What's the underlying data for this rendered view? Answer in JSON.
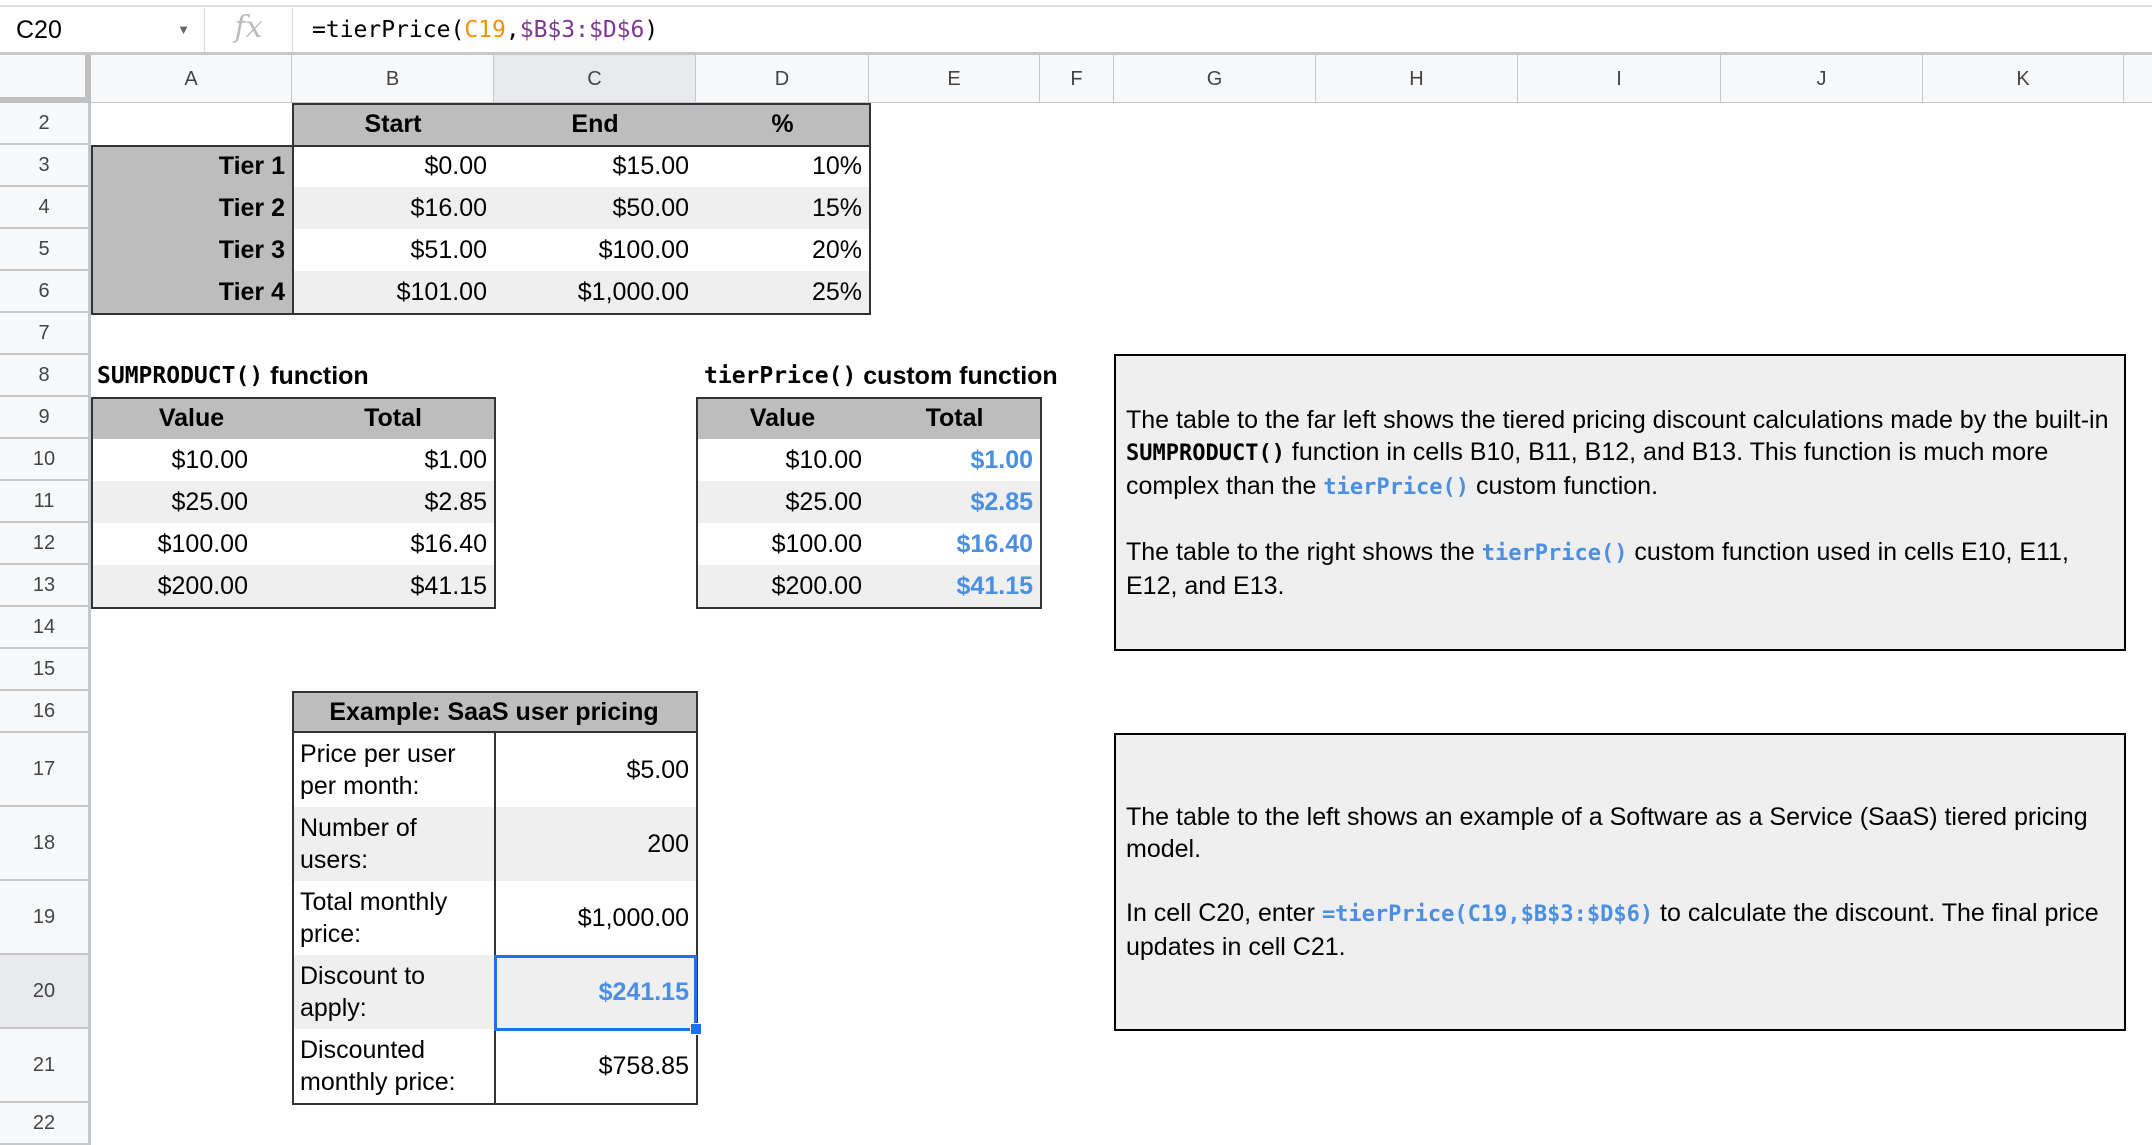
{
  "formula_bar": {
    "name_box": "C20",
    "fx_label": "fx",
    "formula": {
      "prefix": "=tierPrice(",
      "ref1": "C19",
      "sep": ",",
      "ref2": "$B$3:$D$6",
      "suffix": ")"
    },
    "ref_colors": {
      "ref1": "#f09300",
      "ref2": "#7e3794"
    }
  },
  "columns": [
    "A",
    "B",
    "C",
    "D",
    "E",
    "F",
    "G",
    "H",
    "I",
    "J",
    "K"
  ],
  "selected_column": "C",
  "rows": [
    "2",
    "3",
    "4",
    "5",
    "6",
    "7",
    "8",
    "9",
    "10",
    "11",
    "12",
    "13",
    "14",
    "15",
    "16",
    "17",
    "18",
    "19",
    "20",
    "21",
    "22"
  ],
  "selected_row": "20",
  "tier_table": {
    "headers": [
      "Start",
      "End",
      "%"
    ],
    "rows": [
      {
        "label": "Tier 1",
        "start": "$0.00",
        "end": "$15.00",
        "pct": "10%"
      },
      {
        "label": "Tier 2",
        "start": "$16.00",
        "end": "$50.00",
        "pct": "15%"
      },
      {
        "label": "Tier 3",
        "start": "$51.00",
        "end": "$100.00",
        "pct": "20%"
      },
      {
        "label": "Tier 4",
        "start": "$101.00",
        "end": "$1,000.00",
        "pct": "25%"
      }
    ]
  },
  "sumproduct_table": {
    "title_code": "SUMPRODUCT()",
    "title_text": " function",
    "headers": [
      "Value",
      "Total"
    ],
    "rows": [
      [
        "$10.00",
        "$1.00"
      ],
      [
        "$25.00",
        "$2.85"
      ],
      [
        "$100.00",
        "$16.40"
      ],
      [
        "$200.00",
        "$41.15"
      ]
    ]
  },
  "tierprice_table": {
    "title_code": "tierPrice()",
    "title_text": " custom function",
    "headers": [
      "Value",
      "Total"
    ],
    "rows": [
      [
        "$10.00",
        "$1.00"
      ],
      [
        "$25.00",
        "$2.85"
      ],
      [
        "$100.00",
        "$16.40"
      ],
      [
        "$200.00",
        "$41.15"
      ]
    ]
  },
  "saas_table": {
    "title": "Example: SaaS user pricing",
    "rows": [
      {
        "label": "Price per user per month:",
        "value": "$5.00"
      },
      {
        "label": "Number of users:",
        "value": "200"
      },
      {
        "label": "Total monthly price:",
        "value": "$1,000.00"
      },
      {
        "label": "Discount to apply:",
        "value": "$241.15"
      },
      {
        "label": "Discounted monthly price:",
        "value": "$758.85"
      }
    ]
  },
  "note1": {
    "p1": {
      "a": "The table to the far left shows the tiered pricing discount calculations made by the built-in ",
      "code1": "SUMPRODUCT()",
      "b": " function in cells B10, B11, B12, and B13. This function is much more complex than the ",
      "code2": "tierPrice()",
      "c": " custom function."
    },
    "p2": {
      "a": "The table to the right shows the ",
      "code": "tierPrice()",
      "b": " custom function used in cells E10, E11, E12, and E13."
    }
  },
  "note2": {
    "p1": "The table to the left shows an example of a Software as a Service (SaaS) tiered pricing model.",
    "p2": {
      "a": "In cell C20, enter ",
      "code": "=tierPrice(C19,$B$3:$D$6)",
      "b": " to calculate the discount. The final price updates in cell C21."
    }
  },
  "colors": {
    "header_bg": "#bdbdbd",
    "alt_row": "#efefef",
    "accent_blue": "#4a8fe2",
    "selection": "#1a73e8"
  }
}
